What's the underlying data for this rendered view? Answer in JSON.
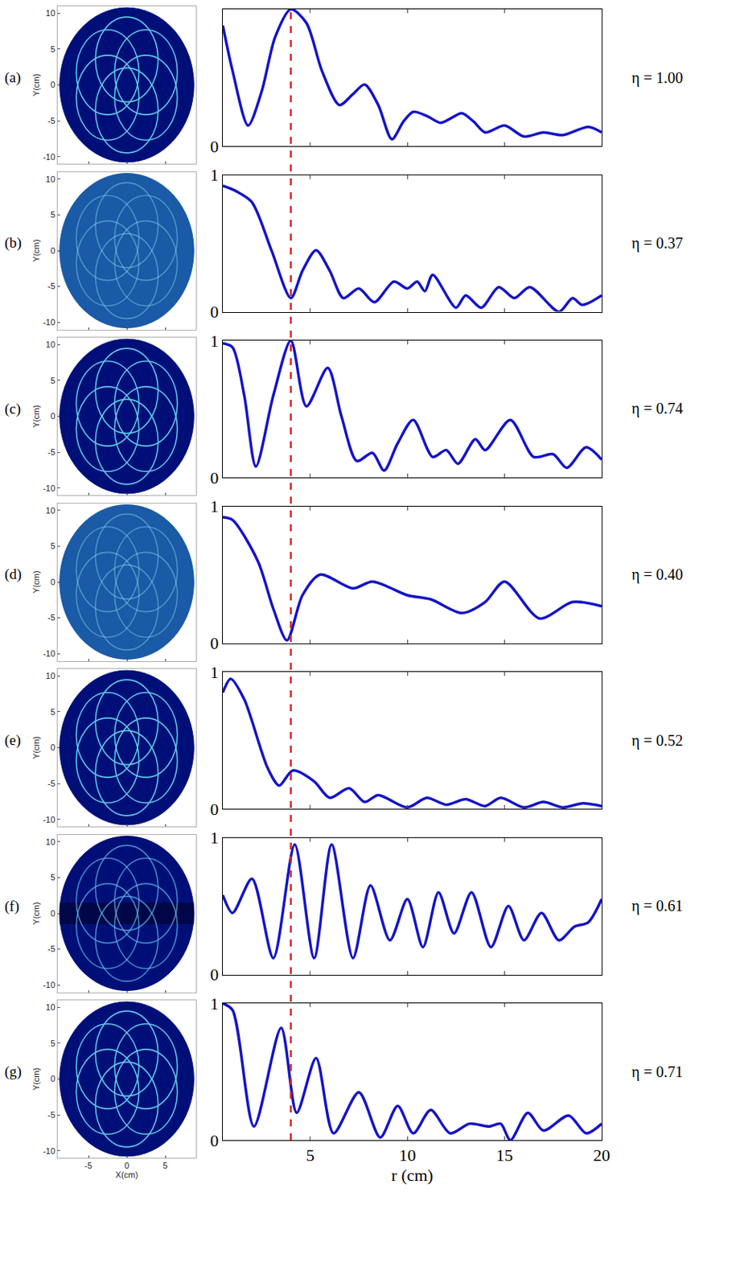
{
  "chart_data": {
    "type": "line",
    "xlabel": "r (cm)",
    "xlim": [
      0.5,
      20
    ],
    "xticks": [
      5,
      10,
      15,
      20
    ],
    "ylim": [
      0,
      1
    ],
    "yticks": [
      0,
      1
    ],
    "color": "#1414c8",
    "line_style": "solid",
    "reference_line": {
      "x": 4,
      "color": "#e02020",
      "line_style": "dashed"
    },
    "image": {
      "xlabel": "X(cm)",
      "ylabel": "Y(cm)",
      "xlim": [
        -9,
        9
      ],
      "ylim": [
        -11,
        11
      ],
      "xticks": [
        -5,
        0,
        5
      ],
      "yticks": [
        -10,
        -5,
        0,
        5,
        10
      ]
    },
    "panels": [
      {
        "label": "(a)",
        "annotation": "η = 1.00",
        "type": "rings",
        "x": [
          0.5,
          1.0,
          1.8,
          2.5,
          3.2,
          4.0,
          4.8,
          5.6,
          6.5,
          7.2,
          7.8,
          8.5,
          9.2,
          9.8,
          10.3,
          11.0,
          11.7,
          12.2,
          12.8,
          13.4,
          14.0,
          15.0,
          16.0,
          17.0,
          18.0,
          19.3,
          20
        ],
        "values": [
          0.88,
          0.55,
          0.15,
          0.4,
          0.8,
          1.0,
          0.9,
          0.55,
          0.3,
          0.38,
          0.45,
          0.3,
          0.05,
          0.18,
          0.25,
          0.22,
          0.17,
          0.2,
          0.24,
          0.18,
          0.1,
          0.15,
          0.07,
          0.1,
          0.08,
          0.14,
          0.1
        ]
      },
      {
        "label": "(b)",
        "annotation": "η = 0.37",
        "type": "speckle",
        "x": [
          0.5,
          1.2,
          2.0,
          3.0,
          4.0,
          4.6,
          5.3,
          6.0,
          6.7,
          7.5,
          8.3,
          9.3,
          10.0,
          10.5,
          10.9,
          11.3,
          12.5,
          13.0,
          13.8,
          14.7,
          15.5,
          16.3,
          17.8,
          18.5,
          19.0,
          20
        ],
        "values": [
          0.92,
          0.88,
          0.8,
          0.45,
          0.1,
          0.3,
          0.45,
          0.3,
          0.1,
          0.17,
          0.07,
          0.22,
          0.17,
          0.22,
          0.15,
          0.27,
          0.03,
          0.12,
          0.03,
          0.18,
          0.1,
          0.18,
          0.0,
          0.1,
          0.05,
          0.12
        ]
      },
      {
        "label": "(c)",
        "annotation": "η = 0.74",
        "type": "rings",
        "x": [
          0.5,
          1.0,
          1.6,
          2.2,
          3.1,
          4.0,
          4.8,
          5.9,
          6.6,
          7.4,
          8.2,
          8.8,
          9.5,
          10.3,
          11.3,
          12.0,
          12.6,
          13.5,
          14.0,
          15.3,
          16.5,
          17.5,
          18.2,
          19.2,
          20
        ],
        "values": [
          0.98,
          0.95,
          0.6,
          0.08,
          0.6,
          1.0,
          0.52,
          0.8,
          0.45,
          0.12,
          0.18,
          0.05,
          0.25,
          0.42,
          0.15,
          0.2,
          0.1,
          0.28,
          0.2,
          0.42,
          0.15,
          0.17,
          0.07,
          0.22,
          0.13
        ]
      },
      {
        "label": "(d)",
        "annotation": "η = 0.40",
        "type": "speckle",
        "x": [
          0.5,
          1.0,
          2.3,
          3.1,
          3.8,
          4.6,
          5.5,
          7.2,
          8.2,
          10.0,
          11.2,
          12.8,
          14.0,
          15.0,
          16.8,
          18.5,
          20
        ],
        "values": [
          0.92,
          0.9,
          0.6,
          0.25,
          0.02,
          0.35,
          0.5,
          0.4,
          0.45,
          0.35,
          0.32,
          0.22,
          0.3,
          0.45,
          0.18,
          0.3,
          0.27
        ]
      },
      {
        "label": "(e)",
        "annotation": "η = 0.52",
        "type": "rings",
        "x": [
          0.5,
          0.9,
          1.6,
          2.8,
          3.4,
          4.1,
          5.2,
          6.0,
          7.0,
          7.8,
          8.5,
          10.0,
          11.0,
          12.0,
          13.0,
          14.0,
          14.8,
          16.0,
          17.0,
          18.0,
          19.0,
          20
        ],
        "values": [
          0.85,
          0.95,
          0.8,
          0.3,
          0.17,
          0.28,
          0.2,
          0.08,
          0.15,
          0.05,
          0.1,
          0.01,
          0.08,
          0.03,
          0.07,
          0.02,
          0.08,
          0.01,
          0.05,
          0.01,
          0.04,
          0.02
        ]
      },
      {
        "label": "(f)",
        "annotation": "η = 0.61",
        "type": "banded",
        "x": [
          0.5,
          1.0,
          2.0,
          3.1,
          4.2,
          5.2,
          6.1,
          7.2,
          8.1,
          9.1,
          10.0,
          10.8,
          11.6,
          12.4,
          13.3,
          14.3,
          15.2,
          16.0,
          16.9,
          17.8,
          18.6,
          19.3,
          20
        ],
        "values": [
          0.58,
          0.45,
          0.7,
          0.12,
          0.95,
          0.12,
          0.95,
          0.12,
          0.65,
          0.25,
          0.55,
          0.2,
          0.6,
          0.3,
          0.6,
          0.2,
          0.5,
          0.25,
          0.45,
          0.25,
          0.35,
          0.38,
          0.55
        ]
      },
      {
        "label": "(g)",
        "annotation": "η = 0.71",
        "type": "rings",
        "x": [
          0.5,
          1.0,
          2.1,
          3.5,
          4.3,
          5.3,
          6.2,
          7.5,
          8.6,
          9.5,
          10.3,
          11.2,
          12.2,
          13.2,
          14.2,
          14.8,
          15.3,
          16.2,
          17.0,
          18.3,
          19.2,
          20
        ],
        "values": [
          1.0,
          0.95,
          0.1,
          0.82,
          0.2,
          0.6,
          0.05,
          0.35,
          0.02,
          0.25,
          0.05,
          0.22,
          0.05,
          0.12,
          0.1,
          0.12,
          0.0,
          0.2,
          0.07,
          0.18,
          0.05,
          0.12
        ]
      }
    ]
  }
}
